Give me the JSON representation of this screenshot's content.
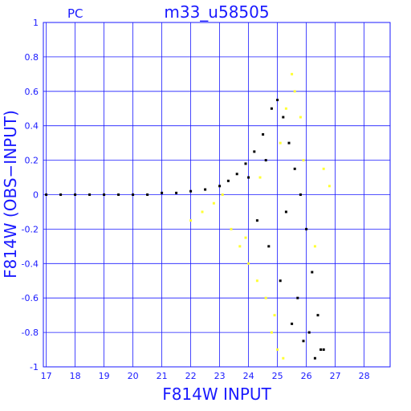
{
  "chart_data": {
    "type": "scatter",
    "title": "m33_u58505",
    "subtitle": "PC",
    "xlabel": "F814W INPUT",
    "ylabel": "F814W (OBS−INPUT)",
    "xlim": [
      16.9,
      28.9
    ],
    "ylim": [
      -1,
      1
    ],
    "grid": true,
    "colors": {
      "axes": "#1a1aff",
      "grid": "#1a1aff",
      "points_main": "#000000",
      "points_highlight": "#ffff33"
    },
    "x_ticks": [
      "17",
      "18",
      "19",
      "20",
      "21",
      "22",
      "23",
      "24",
      "25",
      "26",
      "27",
      "28"
    ],
    "y_ticks": [
      "-1",
      "-0.8",
      "-0.6",
      "-0.4",
      "-0.2",
      "0",
      "0.2",
      "0.4",
      "0.6",
      "0.8",
      "1"
    ],
    "series": [
      {
        "color": "black",
        "note_type": "dense scatter",
        "x": [
          17.0,
          17.5,
          18.0,
          18.5,
          19.0,
          19.5,
          20.0,
          20.5,
          21.0,
          21.5,
          22.0,
          22.5,
          23.0,
          23.3,
          23.6,
          23.9,
          24.2,
          24.5,
          24.8,
          25.0,
          25.2,
          25.4,
          25.6,
          25.8,
          26.0,
          26.2,
          26.4,
          26.6,
          24.3,
          24.7,
          25.1,
          25.5,
          25.9,
          26.3,
          24.0,
          24.6,
          25.3,
          25.7,
          26.1,
          26.5
        ],
        "y": [
          0.0,
          0.0,
          0.0,
          0.0,
          0.0,
          0.0,
          0.0,
          0.0,
          0.01,
          0.01,
          0.02,
          0.03,
          0.05,
          0.08,
          0.12,
          0.18,
          0.25,
          0.35,
          0.5,
          0.55,
          0.45,
          0.3,
          0.15,
          0.0,
          -0.2,
          -0.45,
          -0.7,
          -0.9,
          -0.15,
          -0.3,
          -0.5,
          -0.75,
          -0.85,
          -0.95,
          0.1,
          0.2,
          -0.1,
          -0.6,
          -0.8,
          -0.9
        ]
      },
      {
        "color": "yellow",
        "note_type": "highlighted points",
        "x": [
          22.0,
          22.4,
          22.8,
          23.1,
          23.4,
          23.7,
          24.0,
          24.3,
          24.6,
          24.9,
          25.1,
          25.3,
          25.6,
          25.9,
          26.3,
          26.8,
          24.8,
          25.0,
          25.2,
          24.4,
          23.9,
          25.5,
          25.8,
          26.6
        ],
        "y": [
          -0.15,
          -0.1,
          -0.05,
          0.0,
          -0.2,
          -0.3,
          -0.4,
          -0.5,
          -0.6,
          -0.7,
          0.3,
          0.5,
          0.6,
          0.2,
          -0.3,
          0.05,
          -0.8,
          -0.9,
          -0.95,
          0.1,
          -0.25,
          0.7,
          0.45,
          0.15
        ]
      }
    ]
  }
}
